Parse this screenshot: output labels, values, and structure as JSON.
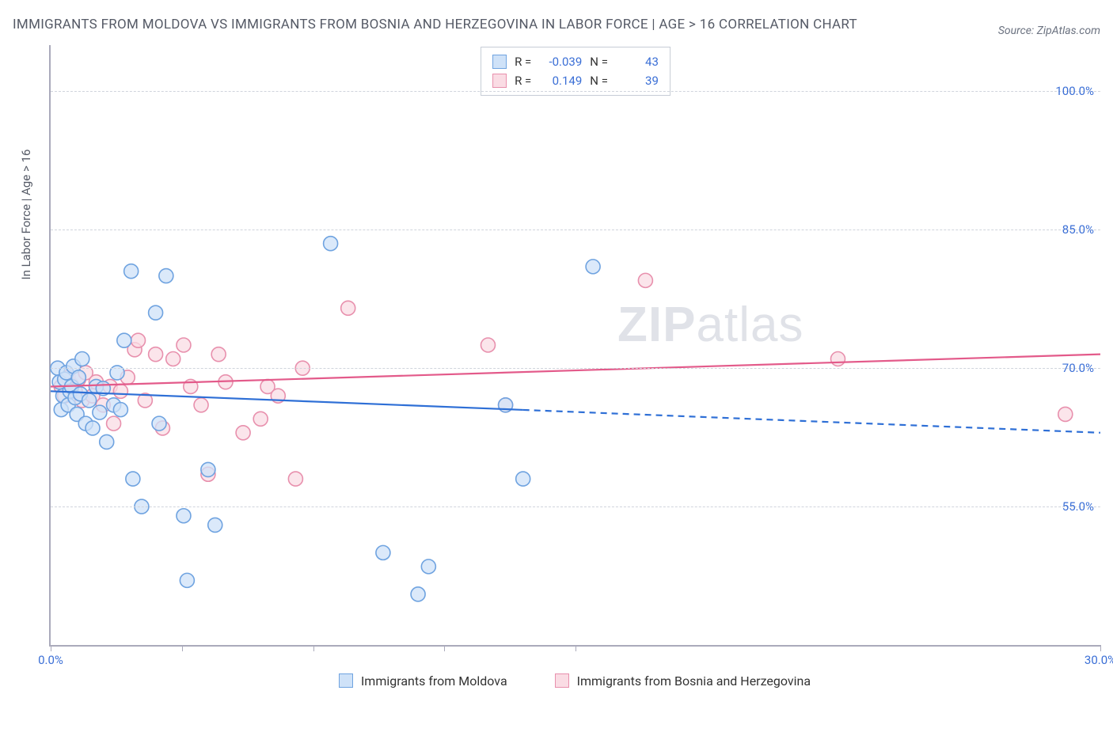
{
  "title": "IMMIGRANTS FROM MOLDOVA VS IMMIGRANTS FROM BOSNIA AND HERZEGOVINA IN LABOR FORCE | AGE > 16 CORRELATION CHART",
  "source": "Source: ZipAtlas.com",
  "y_axis_label": "In Labor Force | Age > 16",
  "watermark_bold": "ZIP",
  "watermark_rest": "atlas",
  "chart": {
    "type": "scatter-with-regression",
    "xlim": [
      0,
      30
    ],
    "ylim": [
      40,
      105
    ],
    "x_ticks": [
      0,
      3.75,
      7.5,
      11.25,
      15,
      30
    ],
    "x_tick_labels": {
      "0": "0.0%",
      "30": "30.0%"
    },
    "y_gridlines": [
      55,
      70,
      85,
      100
    ],
    "y_tick_labels": {
      "55": "55.0%",
      "70": "70.0%",
      "85": "85.0%",
      "100": "100.0%"
    },
    "grid_color": "#d0d4dc",
    "axis_color": "#aab0bd",
    "tick_label_color": "#3b6fd6",
    "background_color": "#ffffff",
    "marker_radius": 9,
    "marker_stroke_width": 1.6,
    "line_width": 2.2
  },
  "series": {
    "moldova": {
      "label": "Immigrants from Moldova",
      "fill": "#cfe2f8",
      "stroke": "#6fa3e0",
      "line_color": "#2e6fd6",
      "R": "-0.039",
      "N": "43",
      "regression": {
        "x1": 0,
        "y1": 67.5,
        "x2": 30,
        "y2": 63.0,
        "solid_until_x": 13.5
      },
      "points": [
        [
          0.2,
          70.0
        ],
        [
          0.25,
          68.5
        ],
        [
          0.3,
          65.5
        ],
        [
          0.35,
          67.0
        ],
        [
          0.4,
          68.8
        ],
        [
          0.45,
          69.5
        ],
        [
          0.5,
          66.0
        ],
        [
          0.55,
          67.5
        ],
        [
          0.6,
          68.0
        ],
        [
          0.65,
          70.2
        ],
        [
          0.7,
          66.8
        ],
        [
          0.75,
          65.0
        ],
        [
          0.8,
          69.0
        ],
        [
          0.85,
          67.2
        ],
        [
          1.0,
          64.0
        ],
        [
          1.1,
          66.5
        ],
        [
          1.2,
          63.5
        ],
        [
          1.3,
          68.0
        ],
        [
          1.4,
          65.2
        ],
        [
          1.5,
          67.8
        ],
        [
          1.6,
          62.0
        ],
        [
          1.8,
          66.0
        ],
        [
          2.0,
          65.5
        ],
        [
          2.1,
          73.0
        ],
        [
          2.3,
          80.5
        ],
        [
          2.35,
          58.0
        ],
        [
          2.6,
          55.0
        ],
        [
          3.0,
          76.0
        ],
        [
          3.1,
          64.0
        ],
        [
          3.3,
          80.0
        ],
        [
          3.8,
          54.0
        ],
        [
          3.9,
          47.0
        ],
        [
          4.5,
          59.0
        ],
        [
          4.7,
          53.0
        ],
        [
          8.0,
          83.5
        ],
        [
          9.5,
          50.0
        ],
        [
          10.5,
          45.5
        ],
        [
          10.8,
          48.5
        ],
        [
          13.5,
          58.0
        ],
        [
          15.5,
          81.0
        ],
        [
          13.0,
          66.0
        ],
        [
          1.9,
          69.5
        ],
        [
          0.9,
          71.0
        ]
      ]
    },
    "bosnia": {
      "label": "Immigrants from Bosnia and Herzegovina",
      "fill": "#fadce4",
      "stroke": "#e890ad",
      "line_color": "#e35a8a",
      "R": "0.149",
      "N": "39",
      "regression": {
        "x1": 0,
        "y1": 68.0,
        "x2": 30,
        "y2": 71.5,
        "solid_until_x": 30
      },
      "points": [
        [
          0.3,
          68.0
        ],
        [
          0.4,
          67.0
        ],
        [
          0.5,
          69.0
        ],
        [
          0.6,
          68.2
        ],
        [
          0.7,
          67.5
        ],
        [
          0.8,
          68.8
        ],
        [
          0.9,
          66.5
        ],
        [
          1.0,
          69.5
        ],
        [
          1.2,
          67.0
        ],
        [
          1.3,
          68.5
        ],
        [
          1.5,
          66.0
        ],
        [
          1.7,
          68.0
        ],
        [
          1.8,
          64.0
        ],
        [
          2.0,
          67.5
        ],
        [
          2.2,
          69.0
        ],
        [
          2.4,
          72.0
        ],
        [
          2.5,
          73.0
        ],
        [
          2.7,
          66.5
        ],
        [
          3.0,
          71.5
        ],
        [
          3.2,
          63.5
        ],
        [
          3.5,
          71.0
        ],
        [
          3.8,
          72.5
        ],
        [
          4.0,
          68.0
        ],
        [
          4.3,
          66.0
        ],
        [
          4.8,
          71.5
        ],
        [
          5.0,
          68.5
        ],
        [
          5.5,
          63.0
        ],
        [
          6.0,
          64.5
        ],
        [
          6.2,
          68.0
        ],
        [
          6.5,
          67.0
        ],
        [
          7.0,
          58.0
        ],
        [
          7.2,
          70.0
        ],
        [
          8.5,
          76.5
        ],
        [
          12.5,
          72.5
        ],
        [
          13.0,
          66.0
        ],
        [
          17.0,
          79.5
        ],
        [
          22.5,
          71.0
        ],
        [
          29.0,
          65.0
        ],
        [
          4.5,
          58.5
        ]
      ]
    }
  },
  "legend_box": {
    "r_label": "R =",
    "n_label": "N ="
  }
}
